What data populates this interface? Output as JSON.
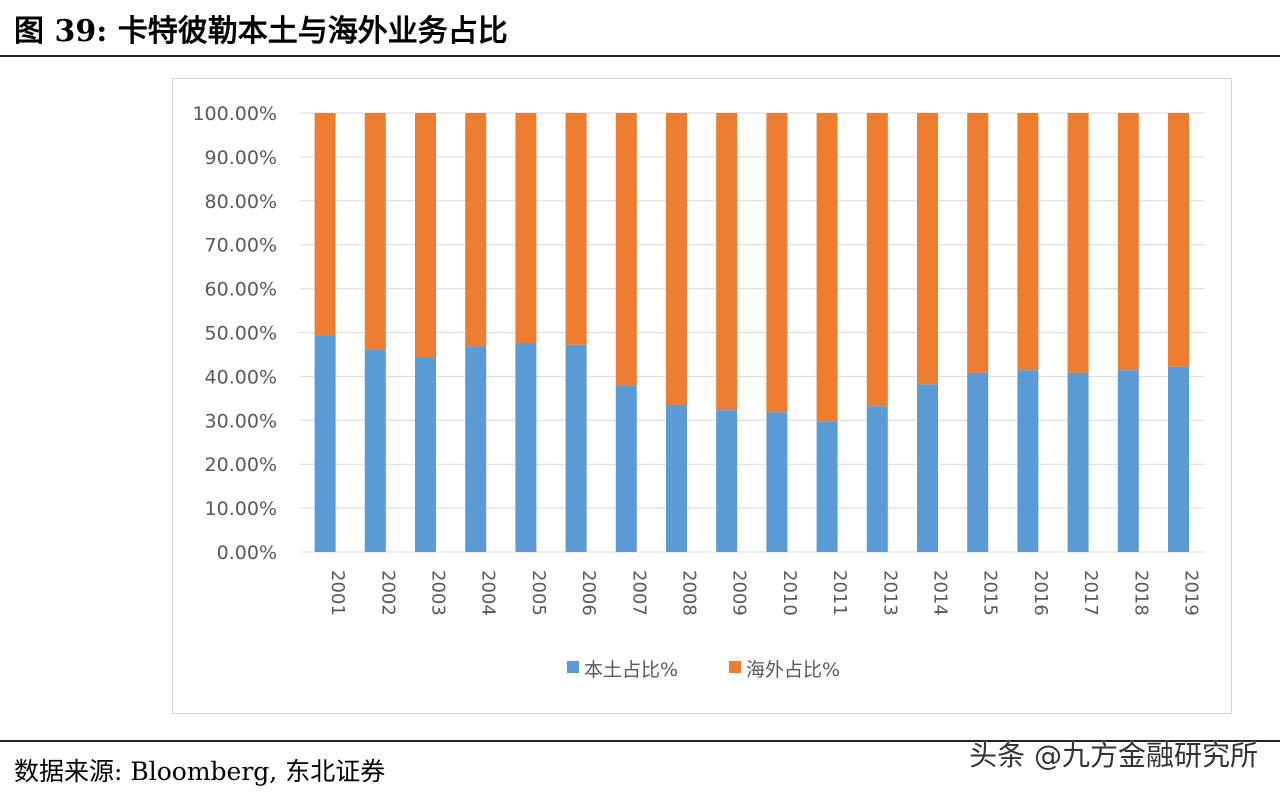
{
  "title": "图 39: 卡特彼勒本土与海外业务占比",
  "source": "数据来源: Bloomberg, 东北证券",
  "watermark": "头条 @九方金融研究所",
  "chart_data": {
    "type": "bar",
    "stacked": true,
    "categories": [
      "2001",
      "2002",
      "2003",
      "2004",
      "2005",
      "2006",
      "2007",
      "2008",
      "2009",
      "2010",
      "2011",
      "2013",
      "2014",
      "2015",
      "2016",
      "2017",
      "2018",
      "2019"
    ],
    "series": [
      {
        "name": "本土占比%",
        "color": "#5b9bd5",
        "values": [
          49.2,
          46.0,
          44.3,
          46.8,
          47.6,
          47.2,
          38.0,
          33.5,
          32.3,
          31.8,
          29.8,
          33.2,
          38.2,
          40.8,
          41.4,
          40.8,
          41.4,
          42.2
        ]
      },
      {
        "name": "海外占比%",
        "color": "#ed7d31",
        "values": [
          50.8,
          54.0,
          55.7,
          53.2,
          52.4,
          52.8,
          62.0,
          66.5,
          67.7,
          68.2,
          70.2,
          66.8,
          61.8,
          59.2,
          58.6,
          59.2,
          58.6,
          57.8
        ]
      }
    ],
    "yticks": [
      "0.00%",
      "10.00%",
      "20.00%",
      "30.00%",
      "40.00%",
      "50.00%",
      "60.00%",
      "70.00%",
      "80.00%",
      "90.00%",
      "100.00%"
    ],
    "ylim": [
      0,
      100
    ],
    "grid": true,
    "legend": "bottom"
  }
}
